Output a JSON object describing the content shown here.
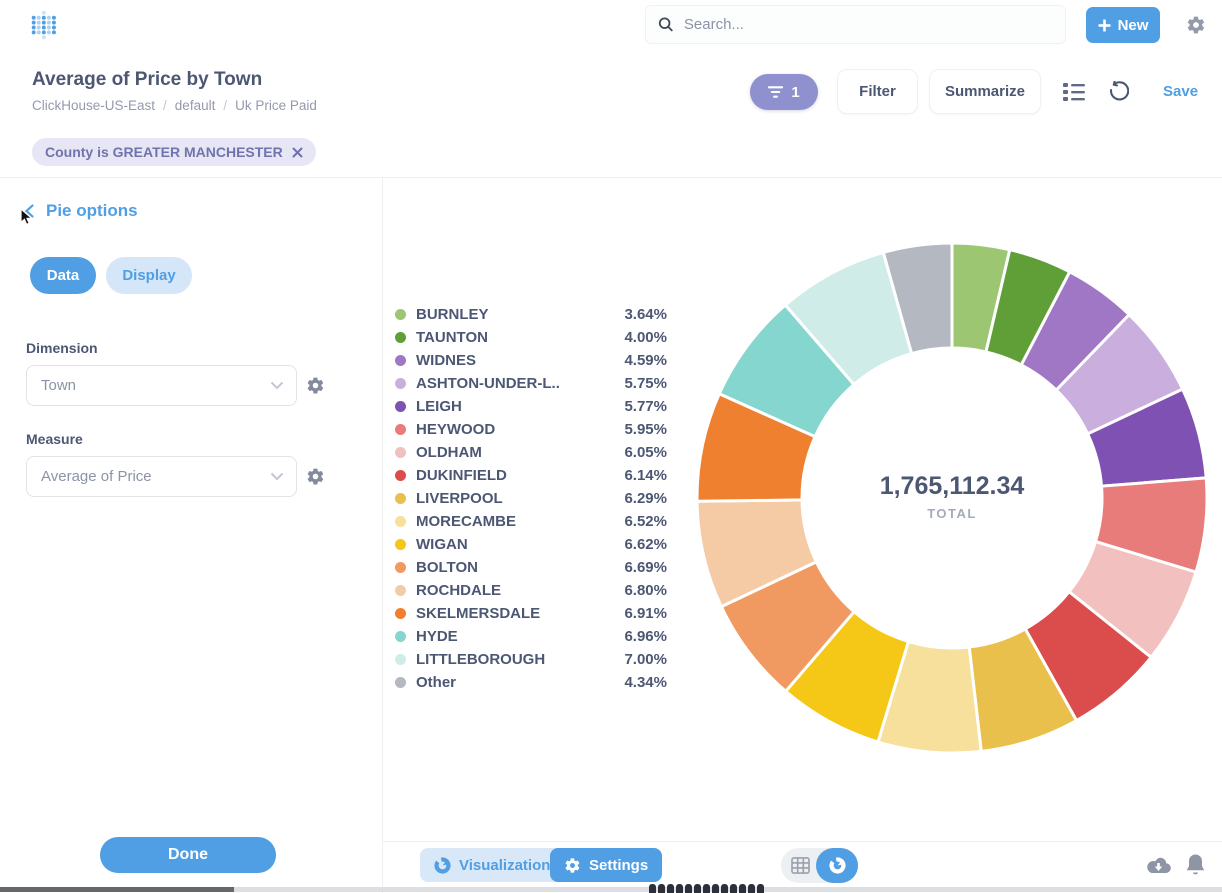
{
  "header": {
    "search_placeholder": "Search...",
    "new_label": "New"
  },
  "question": {
    "title": "Average of Price by Town",
    "breadcrumb": [
      "ClickHouse-US-East",
      "default",
      "Uk Price Paid"
    ],
    "filter_count": "1",
    "filter_label": "Filter",
    "summarize_label": "Summarize",
    "save_label": "Save",
    "filter_chip_label": "County is GREATER MANCHESTER"
  },
  "sidebar": {
    "title": "Pie options",
    "tabs": [
      {
        "label": "Data",
        "active": true
      },
      {
        "label": "Display",
        "active": false
      }
    ],
    "dimension_label": "Dimension",
    "dimension_value": "Town",
    "measure_label": "Measure",
    "measure_value": "Average of Price",
    "done_label": "Done"
  },
  "chart_data": {
    "type": "pie",
    "title": "Average of Price by Town",
    "donut": true,
    "legend_position": "left",
    "dimension": "Town",
    "measure": "Average of Price",
    "total_value": "1,765,112.34",
    "total_label": "TOTAL",
    "categories": [
      "BURNLEY",
      "TAUNTON",
      "WIDNES",
      "ASHTON-UNDER-L..",
      "LEIGH",
      "HEYWOOD",
      "OLDHAM",
      "DUKINFIELD",
      "LIVERPOOL",
      "MORECAMBE",
      "WIGAN",
      "BOLTON",
      "ROCHDALE",
      "SKELMERSDALE",
      "HYDE",
      "LITTLEBOROUGH",
      "Other"
    ],
    "values": [
      3.64,
      4.0,
      4.59,
      5.75,
      5.77,
      5.95,
      6.05,
      6.14,
      6.29,
      6.52,
      6.62,
      6.69,
      6.8,
      6.91,
      6.96,
      7.0,
      4.34
    ],
    "percent_labels": [
      "3.64%",
      "4.00%",
      "4.59%",
      "5.75%",
      "5.77%",
      "5.95%",
      "6.05%",
      "6.14%",
      "6.29%",
      "6.52%",
      "6.62%",
      "6.69%",
      "6.80%",
      "6.91%",
      "6.96%",
      "7.00%",
      "4.34%"
    ],
    "colors": [
      "#9DC672",
      "#609E38",
      "#A077C5",
      "#C9AEDE",
      "#7E51B2",
      "#E87C7B",
      "#F2C0BE",
      "#DB4C4C",
      "#E9C04B",
      "#F7E09B",
      "#F5C716",
      "#F09A62",
      "#F5CBA6",
      "#EE8030",
      "#85D6CE",
      "#CFECE8",
      "#B4B8C0"
    ]
  },
  "footer": {
    "visualization_label": "Visualization",
    "settings_label": "Settings"
  },
  "theme": {
    "brand_blue": "#509EE3",
    "text_dark": "#4C5773",
    "text_muted": "#949AAB",
    "filter_purple": "#8F90CE",
    "chip_bg": "#E6E6F4"
  }
}
